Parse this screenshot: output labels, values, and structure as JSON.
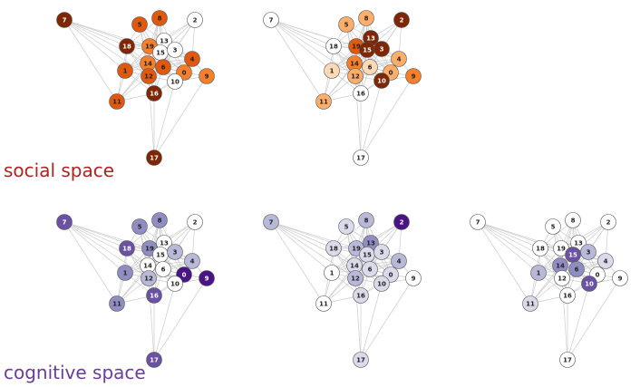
{
  "labels": {
    "social": "social space",
    "cognitive": "cognitive space"
  },
  "colors": {
    "social_label": "#b22222",
    "cognitive_label": "#6a3d9a",
    "edge": "#cccccc",
    "node_border": "#555555",
    "text_dark": "#222222",
    "text_light": "#ffffff"
  },
  "palettes": {
    "orange": {
      "w": "#ffffff",
      "p": "#fdd9b5",
      "l": "#fdae6b",
      "m": "#f57f2a",
      "d": "#e0590e",
      "x": "#7f2704"
    },
    "purple": {
      "w": "#ffffff",
      "p": "#dadaeb",
      "l": "#b8b8d8",
      "m": "#8f8dc1",
      "d": "#6a51a3",
      "x": "#4a1486"
    }
  },
  "edges": [
    [
      "7",
      "18"
    ],
    [
      "7",
      "19"
    ],
    [
      "7",
      "1"
    ],
    [
      "7",
      "11"
    ],
    [
      "7",
      "14"
    ],
    [
      "7",
      "12"
    ],
    [
      "7",
      "15"
    ],
    [
      "5",
      "18"
    ],
    [
      "5",
      "19"
    ],
    [
      "5",
      "13"
    ],
    [
      "5",
      "15"
    ],
    [
      "5",
      "14"
    ],
    [
      "5",
      "12"
    ],
    [
      "8",
      "18"
    ],
    [
      "8",
      "19"
    ],
    [
      "8",
      "13"
    ],
    [
      "8",
      "15"
    ],
    [
      "8",
      "3"
    ],
    [
      "8",
      "14"
    ],
    [
      "8",
      "12"
    ],
    [
      "8",
      "6"
    ],
    [
      "2",
      "13"
    ],
    [
      "2",
      "3"
    ],
    [
      "2",
      "15"
    ],
    [
      "2",
      "4"
    ],
    [
      "2",
      "19"
    ],
    [
      "2",
      "6"
    ],
    [
      "18",
      "19"
    ],
    [
      "18",
      "1"
    ],
    [
      "18",
      "14"
    ],
    [
      "18",
      "12"
    ],
    [
      "18",
      "11"
    ],
    [
      "18",
      "15"
    ],
    [
      "18",
      "16"
    ],
    [
      "18",
      "13"
    ],
    [
      "19",
      "13"
    ],
    [
      "19",
      "15"
    ],
    [
      "19",
      "3"
    ],
    [
      "19",
      "14"
    ],
    [
      "19",
      "12"
    ],
    [
      "19",
      "1"
    ],
    [
      "19",
      "6"
    ],
    [
      "19",
      "16"
    ],
    [
      "19",
      "0"
    ],
    [
      "19",
      "4"
    ],
    [
      "19",
      "10"
    ],
    [
      "13",
      "15"
    ],
    [
      "13",
      "3"
    ],
    [
      "13",
      "14"
    ],
    [
      "13",
      "12"
    ],
    [
      "13",
      "6"
    ],
    [
      "13",
      "4"
    ],
    [
      "13",
      "0"
    ],
    [
      "13",
      "1"
    ],
    [
      "15",
      "3"
    ],
    [
      "15",
      "14"
    ],
    [
      "15",
      "12"
    ],
    [
      "15",
      "6"
    ],
    [
      "15",
      "0"
    ],
    [
      "15",
      "4"
    ],
    [
      "15",
      "1"
    ],
    [
      "15",
      "10"
    ],
    [
      "15",
      "16"
    ],
    [
      "15",
      "11"
    ],
    [
      "3",
      "14"
    ],
    [
      "3",
      "4"
    ],
    [
      "3",
      "6"
    ],
    [
      "3",
      "0"
    ],
    [
      "3",
      "12"
    ],
    [
      "4",
      "6"
    ],
    [
      "4",
      "0"
    ],
    [
      "4",
      "9"
    ],
    [
      "4",
      "10"
    ],
    [
      "4",
      "14"
    ],
    [
      "4",
      "12"
    ],
    [
      "1",
      "14"
    ],
    [
      "1",
      "12"
    ],
    [
      "1",
      "11"
    ],
    [
      "1",
      "16"
    ],
    [
      "1",
      "6"
    ],
    [
      "14",
      "12"
    ],
    [
      "14",
      "6"
    ],
    [
      "14",
      "0"
    ],
    [
      "14",
      "16"
    ],
    [
      "14",
      "11"
    ],
    [
      "14",
      "10"
    ],
    [
      "6",
      "0"
    ],
    [
      "6",
      "12"
    ],
    [
      "6",
      "10"
    ],
    [
      "6",
      "16"
    ],
    [
      "12",
      "0"
    ],
    [
      "12",
      "10"
    ],
    [
      "12",
      "16"
    ],
    [
      "12",
      "11"
    ],
    [
      "12",
      "17"
    ],
    [
      "0",
      "10"
    ],
    [
      "0",
      "9"
    ],
    [
      "0",
      "16"
    ],
    [
      "10",
      "16"
    ],
    [
      "10",
      "9"
    ],
    [
      "10",
      "17"
    ],
    [
      "11",
      "16"
    ],
    [
      "16",
      "17"
    ],
    [
      "9",
      "17"
    ]
  ],
  "panels": [
    {
      "id": "social-1",
      "palette": "orange",
      "nodes": [
        {
          "id": "7",
          "shade": "x"
        },
        {
          "id": "5",
          "shade": "d"
        },
        {
          "id": "8",
          "shade": "d"
        },
        {
          "id": "2",
          "shade": "w"
        },
        {
          "id": "18",
          "shade": "x"
        },
        {
          "id": "19",
          "shade": "m"
        },
        {
          "id": "13",
          "shade": "w"
        },
        {
          "id": "15",
          "shade": "w"
        },
        {
          "id": "3",
          "shade": "w"
        },
        {
          "id": "4",
          "shade": "d"
        },
        {
          "id": "1",
          "shade": "d"
        },
        {
          "id": "14",
          "shade": "m"
        },
        {
          "id": "6",
          "shade": "d"
        },
        {
          "id": "12",
          "shade": "d"
        },
        {
          "id": "0",
          "shade": "m"
        },
        {
          "id": "9",
          "shade": "m"
        },
        {
          "id": "10",
          "shade": "w"
        },
        {
          "id": "11",
          "shade": "d"
        },
        {
          "id": "16",
          "shade": "x"
        },
        {
          "id": "17",
          "shade": "x"
        }
      ]
    },
    {
      "id": "social-2",
      "palette": "orange",
      "nodes": [
        {
          "id": "7",
          "shade": "w"
        },
        {
          "id": "5",
          "shade": "l"
        },
        {
          "id": "8",
          "shade": "l"
        },
        {
          "id": "2",
          "shade": "x"
        },
        {
          "id": "18",
          "shade": "w"
        },
        {
          "id": "19",
          "shade": "d"
        },
        {
          "id": "13",
          "shade": "x"
        },
        {
          "id": "15",
          "shade": "x"
        },
        {
          "id": "3",
          "shade": "x"
        },
        {
          "id": "4",
          "shade": "l"
        },
        {
          "id": "1",
          "shade": "p"
        },
        {
          "id": "14",
          "shade": "m"
        },
        {
          "id": "6",
          "shade": "p"
        },
        {
          "id": "12",
          "shade": "l"
        },
        {
          "id": "0",
          "shade": "l"
        },
        {
          "id": "9",
          "shade": "m"
        },
        {
          "id": "10",
          "shade": "x"
        },
        {
          "id": "11",
          "shade": "l"
        },
        {
          "id": "16",
          "shade": "w"
        },
        {
          "id": "17",
          "shade": "w"
        }
      ]
    },
    {
      "id": "cognitive-1",
      "palette": "purple",
      "nodes": [
        {
          "id": "7",
          "shade": "d"
        },
        {
          "id": "5",
          "shade": "m"
        },
        {
          "id": "8",
          "shade": "m"
        },
        {
          "id": "2",
          "shade": "w"
        },
        {
          "id": "18",
          "shade": "d"
        },
        {
          "id": "19",
          "shade": "m"
        },
        {
          "id": "13",
          "shade": "w"
        },
        {
          "id": "15",
          "shade": "w"
        },
        {
          "id": "3",
          "shade": "l"
        },
        {
          "id": "4",
          "shade": "l"
        },
        {
          "id": "1",
          "shade": "m"
        },
        {
          "id": "14",
          "shade": "w"
        },
        {
          "id": "6",
          "shade": "w"
        },
        {
          "id": "12",
          "shade": "l"
        },
        {
          "id": "0",
          "shade": "x"
        },
        {
          "id": "9",
          "shade": "x"
        },
        {
          "id": "10",
          "shade": "w"
        },
        {
          "id": "11",
          "shade": "m"
        },
        {
          "id": "16",
          "shade": "d"
        },
        {
          "id": "17",
          "shade": "d"
        }
      ]
    },
    {
      "id": "cognitive-2",
      "palette": "purple",
      "nodes": [
        {
          "id": "7",
          "shade": "l"
        },
        {
          "id": "5",
          "shade": "p"
        },
        {
          "id": "8",
          "shade": "l"
        },
        {
          "id": "2",
          "shade": "x"
        },
        {
          "id": "18",
          "shade": "p"
        },
        {
          "id": "19",
          "shade": "l"
        },
        {
          "id": "13",
          "shade": "m"
        },
        {
          "id": "15",
          "shade": "p"
        },
        {
          "id": "3",
          "shade": "p"
        },
        {
          "id": "4",
          "shade": "l"
        },
        {
          "id": "1",
          "shade": "w"
        },
        {
          "id": "14",
          "shade": "p"
        },
        {
          "id": "6",
          "shade": "p"
        },
        {
          "id": "12",
          "shade": "l"
        },
        {
          "id": "0",
          "shade": "p"
        },
        {
          "id": "9",
          "shade": "w"
        },
        {
          "id": "10",
          "shade": "p"
        },
        {
          "id": "11",
          "shade": "w"
        },
        {
          "id": "16",
          "shade": "p"
        },
        {
          "id": "17",
          "shade": "p"
        }
      ]
    },
    {
      "id": "cognitive-3",
      "palette": "purple",
      "nodes": [
        {
          "id": "7",
          "shade": "w"
        },
        {
          "id": "5",
          "shade": "w"
        },
        {
          "id": "8",
          "shade": "w"
        },
        {
          "id": "2",
          "shade": "w"
        },
        {
          "id": "18",
          "shade": "w"
        },
        {
          "id": "19",
          "shade": "w"
        },
        {
          "id": "13",
          "shade": "w"
        },
        {
          "id": "15",
          "shade": "d"
        },
        {
          "id": "3",
          "shade": "l"
        },
        {
          "id": "4",
          "shade": "p"
        },
        {
          "id": "1",
          "shade": "l"
        },
        {
          "id": "14",
          "shade": "m"
        },
        {
          "id": "6",
          "shade": "m"
        },
        {
          "id": "12",
          "shade": "w"
        },
        {
          "id": "0",
          "shade": "w"
        },
        {
          "id": "9",
          "shade": "w"
        },
        {
          "id": "10",
          "shade": "d"
        },
        {
          "id": "11",
          "shade": "p"
        },
        {
          "id": "16",
          "shade": "w"
        },
        {
          "id": "17",
          "shade": "w"
        }
      ]
    }
  ]
}
